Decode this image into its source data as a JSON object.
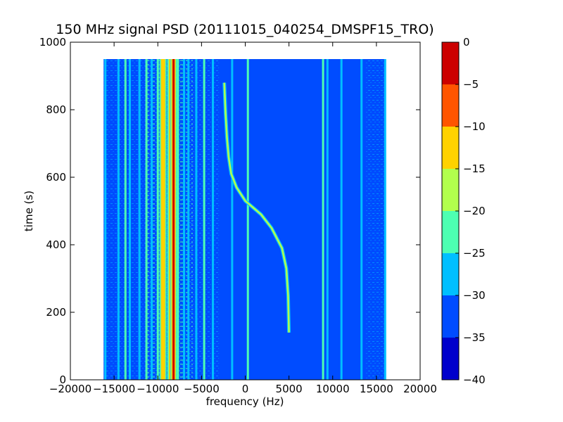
{
  "chart_data": {
    "type": "heatmap",
    "title": "150 MHz signal PSD (20111015_040254_DMSPF15_TRO)",
    "xlabel": "frequency (Hz)",
    "ylabel": "time (s)",
    "xlim": [
      -20000,
      20000
    ],
    "ylim": [
      0,
      1000
    ],
    "x_ticks": [
      -20000,
      -15000,
      -10000,
      -5000,
      0,
      5000,
      10000,
      15000,
      20000
    ],
    "x_tick_labels": [
      "−20000",
      "−15000",
      "−10000",
      "−5000",
      "0",
      "5000",
      "10000",
      "15000",
      "20000"
    ],
    "y_ticks": [
      0,
      200,
      400,
      600,
      800,
      1000
    ],
    "y_tick_labels": [
      "0",
      "200",
      "400",
      "600",
      "800",
      "1000"
    ],
    "data_extent": {
      "x": [
        -16200,
        16000
      ],
      "y": [
        0,
        950
      ]
    },
    "background_level": -32,
    "vertical_lines": [
      {
        "x": -16000,
        "level": -27
      },
      {
        "x": -14500,
        "level": -25
      },
      {
        "x": -13700,
        "level": -22
      },
      {
        "x": -13200,
        "level": -25
      },
      {
        "x": -12100,
        "level": -25
      },
      {
        "x": -11300,
        "level": -22
      },
      {
        "x": -10700,
        "level": -25
      },
      {
        "x": -10000,
        "level": -20
      },
      {
        "x": -9400,
        "level": -12
      },
      {
        "x": -8800,
        "level": -22
      },
      {
        "x": -8500,
        "level": -8
      },
      {
        "x": -8200,
        "level": -3
      },
      {
        "x": -7700,
        "level": -22
      },
      {
        "x": -7000,
        "level": -27
      },
      {
        "x": -6500,
        "level": -25
      },
      {
        "x": -5600,
        "level": -25
      },
      {
        "x": -4700,
        "level": -22
      },
      {
        "x": -3700,
        "level": -27
      },
      {
        "x": -1500,
        "level": -27
      },
      {
        "x": 300,
        "level": -22
      },
      {
        "x": 8900,
        "level": -22
      },
      {
        "x": 9400,
        "level": -25
      },
      {
        "x": 11000,
        "level": -27
      },
      {
        "x": 13300,
        "level": -27
      },
      {
        "x": 16000,
        "level": -27
      }
    ],
    "doppler_trace": {
      "level": -18,
      "points": [
        {
          "x": 5000,
          "y": 140
        },
        {
          "x": 4900,
          "y": 250
        },
        {
          "x": 4700,
          "y": 330
        },
        {
          "x": 4200,
          "y": 390
        },
        {
          "x": 3000,
          "y": 450
        },
        {
          "x": 1800,
          "y": 490
        },
        {
          "x": 0,
          "y": 530
        },
        {
          "x": -1000,
          "y": 570
        },
        {
          "x": -1600,
          "y": 610
        },
        {
          "x": -1900,
          "y": 660
        },
        {
          "x": -2100,
          "y": 720
        },
        {
          "x": -2250,
          "y": 790
        },
        {
          "x": -2400,
          "y": 880
        }
      ]
    },
    "colorbar": {
      "min": -40,
      "max": 0,
      "ticks": [
        0,
        -5,
        -10,
        -15,
        -20,
        -25,
        -30,
        -35,
        -40
      ],
      "tick_labels": [
        "0",
        "−5",
        "−10",
        "−15",
        "−20",
        "−25",
        "−30",
        "−35",
        "−40"
      ],
      "bands": [
        {
          "from": -40,
          "to": -35,
          "color": "#0000cc"
        },
        {
          "from": -35,
          "to": -30,
          "color": "#004cff"
        },
        {
          "from": -30,
          "to": -25,
          "color": "#00bfff"
        },
        {
          "from": -25,
          "to": -20,
          "color": "#4dffb2"
        },
        {
          "from": -20,
          "to": -15,
          "color": "#b2ff4d"
        },
        {
          "from": -15,
          "to": -10,
          "color": "#ffd200"
        },
        {
          "from": -10,
          "to": -5,
          "color": "#ff5500"
        },
        {
          "from": -5,
          "to": 0,
          "color": "#cc0000"
        }
      ]
    }
  }
}
